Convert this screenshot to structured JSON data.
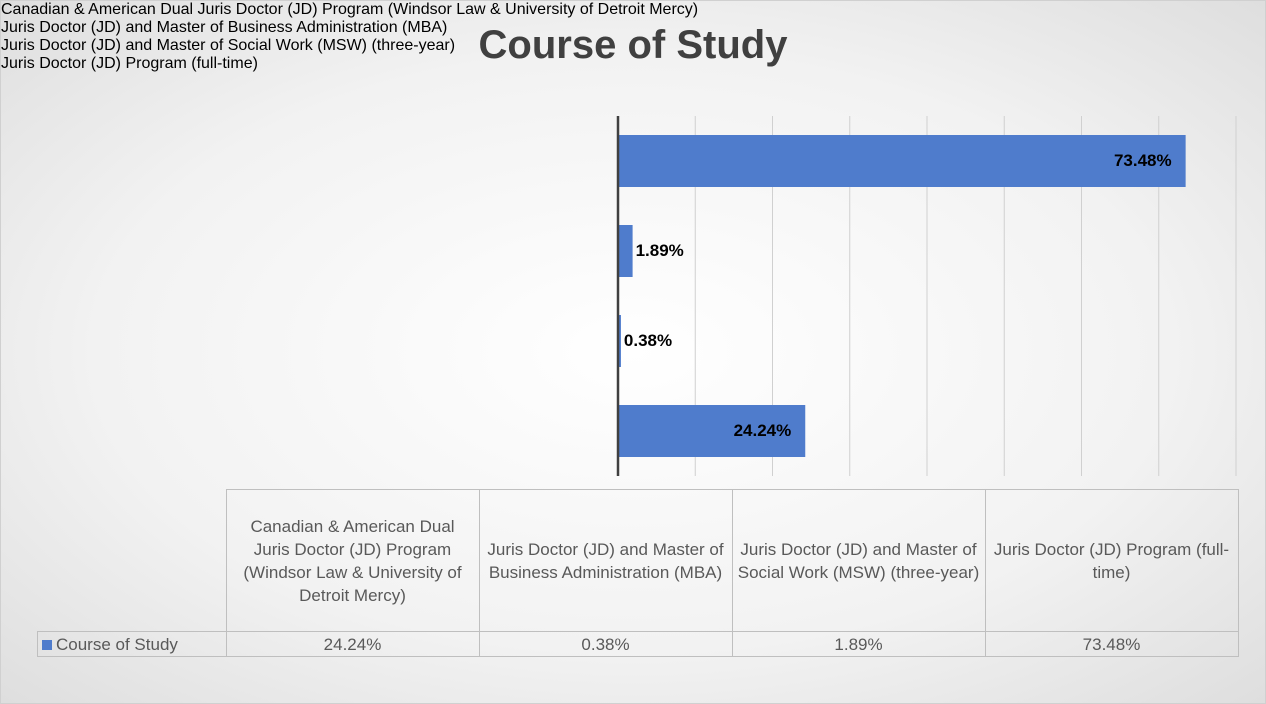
{
  "chart_data": {
    "type": "barh",
    "title": "Course of Study",
    "categories": [
      "Canadian & American Dual Juris Doctor (JD) Program (Windsor Law & University of Detroit Mercy)",
      "Juris Doctor (JD) and Master of Business Administration (MBA)",
      "Juris Doctor (JD) and Master of Social Work (MSW) (three-year)",
      "Juris Doctor (JD) Program (full-time)"
    ],
    "series": [
      {
        "name": "Course of Study",
        "color": "#4f7ccc",
        "values": [
          24.24,
          0.38,
          1.89,
          73.48
        ],
        "value_labels": [
          "24.24%",
          "0.38%",
          "1.89%",
          "73.48%"
        ]
      }
    ],
    "xlim": [
      0,
      80
    ],
    "xticks": [
      0,
      10,
      20,
      30,
      40,
      50,
      60,
      70,
      80
    ],
    "grid": true,
    "data_table": true
  }
}
